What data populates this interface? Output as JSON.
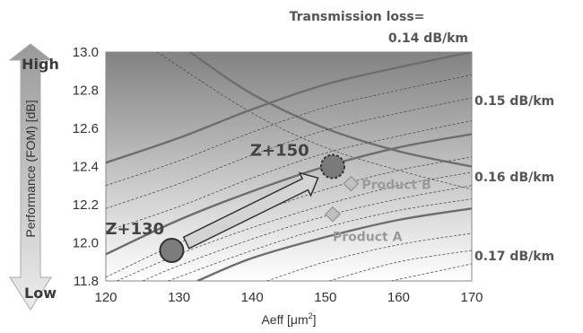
{
  "chart_data": {
    "type": "line",
    "xlabel_main": "Aeff [μm",
    "xlabel_sup": "2",
    "xlabel_end": "]",
    "ylabel": "Performance  (FOM)  [dB]",
    "xlim": [
      120,
      170
    ],
    "ylim": [
      11.8,
      13.0
    ],
    "x_ticks": [
      "120",
      "130",
      "140",
      "150",
      "160",
      "170"
    ],
    "y_ticks": [
      "11.8",
      "12.0",
      "12.2",
      "12.4",
      "12.6",
      "12.8",
      "13.0"
    ],
    "contour_title_line1": "Transmission loss=",
    "contour_title_line2": "0.14 dB/km",
    "contour_labels": [
      "0.15 dB/km",
      "0.16 dB/km",
      "0.17 dB/km"
    ],
    "series": [
      {
        "label": "0.14 dB/km",
        "style": "solid",
        "points": [
          [
            131.5,
            13.0
          ],
          [
            140,
            12.78
          ],
          [
            150,
            12.6
          ],
          [
            160,
            12.48
          ],
          [
            170,
            12.4
          ]
        ]
      },
      {
        "label": "",
        "style": "dashed",
        "points": [
          [
            127,
            13.0
          ],
          [
            140,
            12.68
          ],
          [
            150,
            12.5
          ],
          [
            160,
            12.38
          ],
          [
            170,
            12.28
          ]
        ]
      },
      {
        "label": "0.15 dB/km",
        "style": "solid",
        "points": [
          [
            120,
            12.42
          ],
          [
            130,
            12.55
          ],
          [
            140,
            12.7
          ],
          [
            150,
            12.83
          ],
          [
            160,
            12.92
          ],
          [
            170,
            13.0
          ]
        ]
      },
      {
        "label": "",
        "style": "dashed",
        "points": [
          [
            120,
            12.3
          ],
          [
            130,
            12.43
          ],
          [
            140,
            12.58
          ],
          [
            150,
            12.71
          ],
          [
            160,
            12.8
          ],
          [
            170,
            12.88
          ]
        ]
      },
      {
        "label": "",
        "style": "dashed",
        "points": [
          [
            120,
            12.18
          ],
          [
            130,
            12.31
          ],
          [
            140,
            12.46
          ],
          [
            150,
            12.59
          ],
          [
            160,
            12.68
          ],
          [
            170,
            12.76
          ]
        ]
      },
      {
        "label": "",
        "style": "dashed",
        "points": [
          [
            120,
            12.06
          ],
          [
            130,
            12.19
          ],
          [
            140,
            12.34
          ],
          [
            150,
            12.47
          ],
          [
            160,
            12.56
          ],
          [
            170,
            12.64
          ]
        ]
      },
      {
        "label": "0.16 dB/km",
        "style": "solid",
        "points": [
          [
            120,
            11.94
          ],
          [
            130,
            12.12
          ],
          [
            140,
            12.27
          ],
          [
            150,
            12.4
          ],
          [
            160,
            12.5
          ],
          [
            170,
            12.57
          ]
        ]
      },
      {
        "label": "",
        "style": "dashed",
        "points": [
          [
            120,
            11.82
          ],
          [
            130,
            12.0
          ],
          [
            140,
            12.15
          ],
          [
            150,
            12.28
          ],
          [
            160,
            12.38
          ],
          [
            170,
            12.45
          ]
        ]
      },
      {
        "label": "",
        "style": "dashed",
        "points": [
          [
            121.5,
            11.8
          ],
          [
            130,
            11.94
          ],
          [
            140,
            12.08
          ],
          [
            150,
            12.2
          ],
          [
            160,
            12.3
          ],
          [
            170,
            12.37
          ]
        ]
      },
      {
        "label": "",
        "style": "dashed",
        "points": [
          [
            125,
            11.8
          ],
          [
            130,
            11.88
          ],
          [
            140,
            12.02
          ],
          [
            150,
            12.14
          ],
          [
            160,
            12.23
          ],
          [
            170,
            12.3
          ]
        ]
      },
      {
        "label": "",
        "style": "dashed",
        "points": [
          [
            128.5,
            11.8
          ],
          [
            140,
            11.96
          ],
          [
            150,
            12.08
          ],
          [
            160,
            12.17
          ],
          [
            170,
            12.23
          ]
        ]
      },
      {
        "label": "0.17 dB/km",
        "style": "solid",
        "points": [
          [
            132.5,
            11.8
          ],
          [
            140,
            11.92
          ],
          [
            150,
            12.03
          ],
          [
            160,
            12.12
          ],
          [
            170,
            12.18
          ]
        ]
      },
      {
        "label": "",
        "style": "dashed",
        "points": [
          [
            142,
            11.8
          ],
          [
            150,
            11.9
          ],
          [
            160,
            11.99
          ],
          [
            170,
            12.05
          ]
        ]
      },
      {
        "label": "",
        "style": "dashed",
        "points": [
          [
            150.5,
            11.8
          ],
          [
            160,
            11.9
          ],
          [
            170,
            11.96
          ]
        ]
      },
      {
        "label": "",
        "style": "dashed",
        "points": [
          [
            159,
            11.8
          ],
          [
            170,
            11.89
          ]
        ]
      }
    ],
    "points": [
      {
        "label": "Z+130",
        "x": 129,
        "y": 11.96,
        "fill": "#7c7c7c",
        "stroke": "#333333",
        "dashed": false
      },
      {
        "label": "Z+150",
        "x": 151,
        "y": 12.4,
        "fill": "#7a7a7a",
        "stroke": "#333333",
        "dashed": true
      },
      {
        "label": "Product A",
        "x": 151,
        "y": 12.15,
        "fill": "#c0c0c0",
        "stroke": "#9a9a9a",
        "marker": "diamond"
      },
      {
        "label": "Product B",
        "x": 153.5,
        "y": 12.31,
        "fill": "#c0c0c0",
        "stroke": "#9a9a9a",
        "marker": "diamond"
      }
    ],
    "arrow": {
      "from": [
        131,
        12.0
      ],
      "to": [
        149,
        12.34
      ]
    },
    "performance_arrow": {
      "high": "High",
      "low": "Low"
    },
    "grid": false,
    "colors": {
      "bg_top": "#828282",
      "bg_bottom": "#ffffff",
      "solid_line": "#6e6e6e",
      "dashed_line": "#525252"
    }
  }
}
